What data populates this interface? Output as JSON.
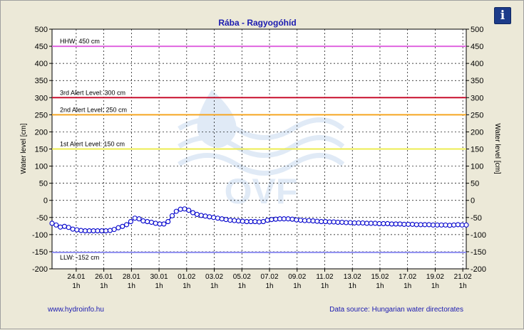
{
  "chart_data": {
    "type": "line",
    "title": "Rába - Ragyogóhíd",
    "ylabel_left": "Water level [cm]",
    "ylabel_right": "Water level [cm]",
    "ylim": [
      -200,
      500
    ],
    "yticks": [
      500,
      450,
      400,
      350,
      300,
      250,
      200,
      150,
      100,
      50,
      0,
      -50,
      -100,
      -150,
      -200
    ],
    "xlim": [
      0,
      30
    ],
    "grid": true,
    "x_ticks": [
      {
        "x": 1.75,
        "date": "24.01",
        "hour": "1h"
      },
      {
        "x": 3.75,
        "date": "26.01",
        "hour": "1h"
      },
      {
        "x": 5.75,
        "date": "28.01",
        "hour": "1h"
      },
      {
        "x": 7.75,
        "date": "30.01",
        "hour": "1h"
      },
      {
        "x": 9.75,
        "date": "01.02",
        "hour": "1h"
      },
      {
        "x": 11.75,
        "date": "03.02",
        "hour": "1h"
      },
      {
        "x": 13.75,
        "date": "05.02",
        "hour": "1h"
      },
      {
        "x": 15.75,
        "date": "07.02",
        "hour": "1h"
      },
      {
        "x": 17.75,
        "date": "09.02",
        "hour": "1h"
      },
      {
        "x": 19.75,
        "date": "11.02",
        "hour": "1h"
      },
      {
        "x": 21.75,
        "date": "13.02",
        "hour": "1h"
      },
      {
        "x": 23.75,
        "date": "15.02",
        "hour": "1h"
      },
      {
        "x": 25.75,
        "date": "17.02",
        "hour": "1h"
      },
      {
        "x": 27.75,
        "date": "19.02",
        "hour": "1h"
      },
      {
        "x": 29.75,
        "date": "21.02",
        "hour": "1h"
      }
    ],
    "reference_lines": [
      {
        "label": "HHW: 450 cm",
        "value": 450,
        "color": "#e066e0"
      },
      {
        "label": "3rd Alert Level: 300 cm",
        "value": 300,
        "color": "#c8102e"
      },
      {
        "label": "2nd Alert Level: 250 cm",
        "value": 250,
        "color": "#f5a623"
      },
      {
        "label": "1st Alert Level: 150 cm",
        "value": 150,
        "color": "#ecec50"
      },
      {
        "label": "LLW: -152 cm",
        "value": -152,
        "color": "#8c8cf0"
      }
    ],
    "series": [
      {
        "color": "#0000cc",
        "points": [
          [
            0.0,
            -67
          ],
          [
            0.3,
            -72
          ],
          [
            0.6,
            -78
          ],
          [
            0.9,
            -76
          ],
          [
            1.2,
            -79
          ],
          [
            1.5,
            -84
          ],
          [
            1.8,
            -86
          ],
          [
            2.1,
            -88
          ],
          [
            2.4,
            -89
          ],
          [
            2.7,
            -89
          ],
          [
            3.0,
            -89
          ],
          [
            3.3,
            -89
          ],
          [
            3.6,
            -89
          ],
          [
            3.9,
            -89
          ],
          [
            4.2,
            -88
          ],
          [
            4.5,
            -85
          ],
          [
            4.8,
            -80
          ],
          [
            5.1,
            -76
          ],
          [
            5.4,
            -71
          ],
          [
            5.7,
            -62
          ],
          [
            6.0,
            -52
          ],
          [
            6.3,
            -54
          ],
          [
            6.6,
            -60
          ],
          [
            6.9,
            -62
          ],
          [
            7.2,
            -64
          ],
          [
            7.5,
            -67
          ],
          [
            7.8,
            -69
          ],
          [
            8.1,
            -69
          ],
          [
            8.4,
            -62
          ],
          [
            8.7,
            -45
          ],
          [
            9.0,
            -32
          ],
          [
            9.3,
            -26
          ],
          [
            9.6,
            -25
          ],
          [
            9.9,
            -29
          ],
          [
            10.2,
            -36
          ],
          [
            10.5,
            -41
          ],
          [
            10.8,
            -44
          ],
          [
            11.1,
            -46
          ],
          [
            11.4,
            -48
          ],
          [
            11.7,
            -50
          ],
          [
            12.0,
            -52
          ],
          [
            12.3,
            -54
          ],
          [
            12.6,
            -56
          ],
          [
            12.9,
            -58
          ],
          [
            13.2,
            -59
          ],
          [
            13.5,
            -60
          ],
          [
            13.8,
            -61
          ],
          [
            14.1,
            -62
          ],
          [
            14.4,
            -62
          ],
          [
            14.7,
            -62
          ],
          [
            15.0,
            -63
          ],
          [
            15.3,
            -62
          ],
          [
            15.6,
            -58
          ],
          [
            15.9,
            -56
          ],
          [
            16.2,
            -55
          ],
          [
            16.5,
            -54
          ],
          [
            16.8,
            -54
          ],
          [
            17.1,
            -54
          ],
          [
            17.4,
            -55
          ],
          [
            17.7,
            -57
          ],
          [
            18.0,
            -58
          ],
          [
            18.3,
            -59
          ],
          [
            18.6,
            -59
          ],
          [
            18.9,
            -60
          ],
          [
            19.2,
            -61
          ],
          [
            19.5,
            -62
          ],
          [
            19.8,
            -62
          ],
          [
            20.1,
            -63
          ],
          [
            20.4,
            -63
          ],
          [
            20.7,
            -64
          ],
          [
            21.0,
            -64
          ],
          [
            21.3,
            -65
          ],
          [
            21.6,
            -65
          ],
          [
            21.9,
            -66
          ],
          [
            22.2,
            -66
          ],
          [
            22.5,
            -66
          ],
          [
            22.8,
            -67
          ],
          [
            23.1,
            -67
          ],
          [
            23.4,
            -67
          ],
          [
            23.7,
            -68
          ],
          [
            24.0,
            -68
          ],
          [
            24.3,
            -68
          ],
          [
            24.6,
            -69
          ],
          [
            24.9,
            -69
          ],
          [
            25.2,
            -69
          ],
          [
            25.5,
            -70
          ],
          [
            25.8,
            -70
          ],
          [
            26.1,
            -70
          ],
          [
            26.4,
            -71
          ],
          [
            26.7,
            -71
          ],
          [
            27.0,
            -71
          ],
          [
            27.3,
            -71
          ],
          [
            27.6,
            -72
          ],
          [
            27.9,
            -72
          ],
          [
            28.2,
            -72
          ],
          [
            28.5,
            -72
          ],
          [
            28.8,
            -73
          ],
          [
            29.1,
            -72
          ],
          [
            29.4,
            -71
          ],
          [
            29.7,
            -72
          ],
          [
            30.0,
            -72
          ]
        ]
      }
    ]
  },
  "watermark": {
    "text": "OVF",
    "color": "#c8daf0"
  },
  "footer": {
    "left": "www.hydroinfo.hu",
    "right": "Data source: Hungarian water directorates"
  },
  "info_button": {
    "label": "i",
    "color": "#1c3b8a"
  }
}
